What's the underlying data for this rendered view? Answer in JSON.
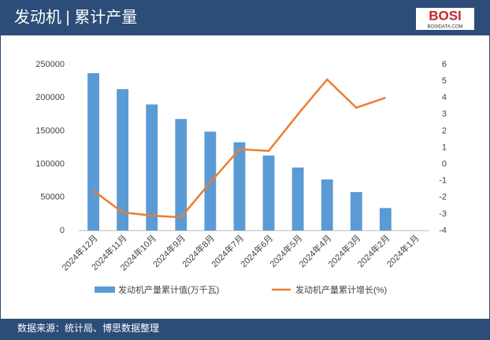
{
  "header": {
    "title": "发动机 | 累计产量",
    "logo": "BOSI",
    "logo_sub": "BOSIDATA.COM"
  },
  "chart_data": {
    "type": "bar-line",
    "categories": [
      "2024年12月",
      "2024年11月",
      "2024年10月",
      "2024年9月",
      "2024年8月",
      "2024年7月",
      "2024年6月",
      "2024年5月",
      "2024年4月",
      "2024年3月",
      "2024年2月",
      "2024年1月"
    ],
    "series": [
      {
        "name": "发动机产量累计值(万千瓦)",
        "color": "#5b9bd5",
        "type": "bar",
        "values": [
          237000,
          213000,
          190000,
          168000,
          149000,
          133000,
          113000,
          95000,
          77000,
          58000,
          34000,
          null
        ]
      },
      {
        "name": "发动机产量累计增长(%)",
        "color": "#ed7d31",
        "type": "line",
        "axis": "y2",
        "values": [
          -1.6,
          -2.9,
          -3.1,
          -3.2,
          -1.1,
          0.9,
          0.8,
          3.0,
          5.1,
          3.4,
          4.0,
          null
        ]
      }
    ],
    "ylim": [
      0,
      250000
    ],
    "yticks": [
      0,
      50000,
      100000,
      150000,
      200000,
      250000
    ],
    "y2lim": [
      -4,
      6
    ],
    "y2ticks": [
      -4,
      -3,
      -2,
      -1,
      0,
      1,
      2,
      3,
      4,
      5,
      6
    ],
    "legend": "bottom"
  },
  "footer": {
    "source": "数据来源：统计局、博思数据整理"
  }
}
